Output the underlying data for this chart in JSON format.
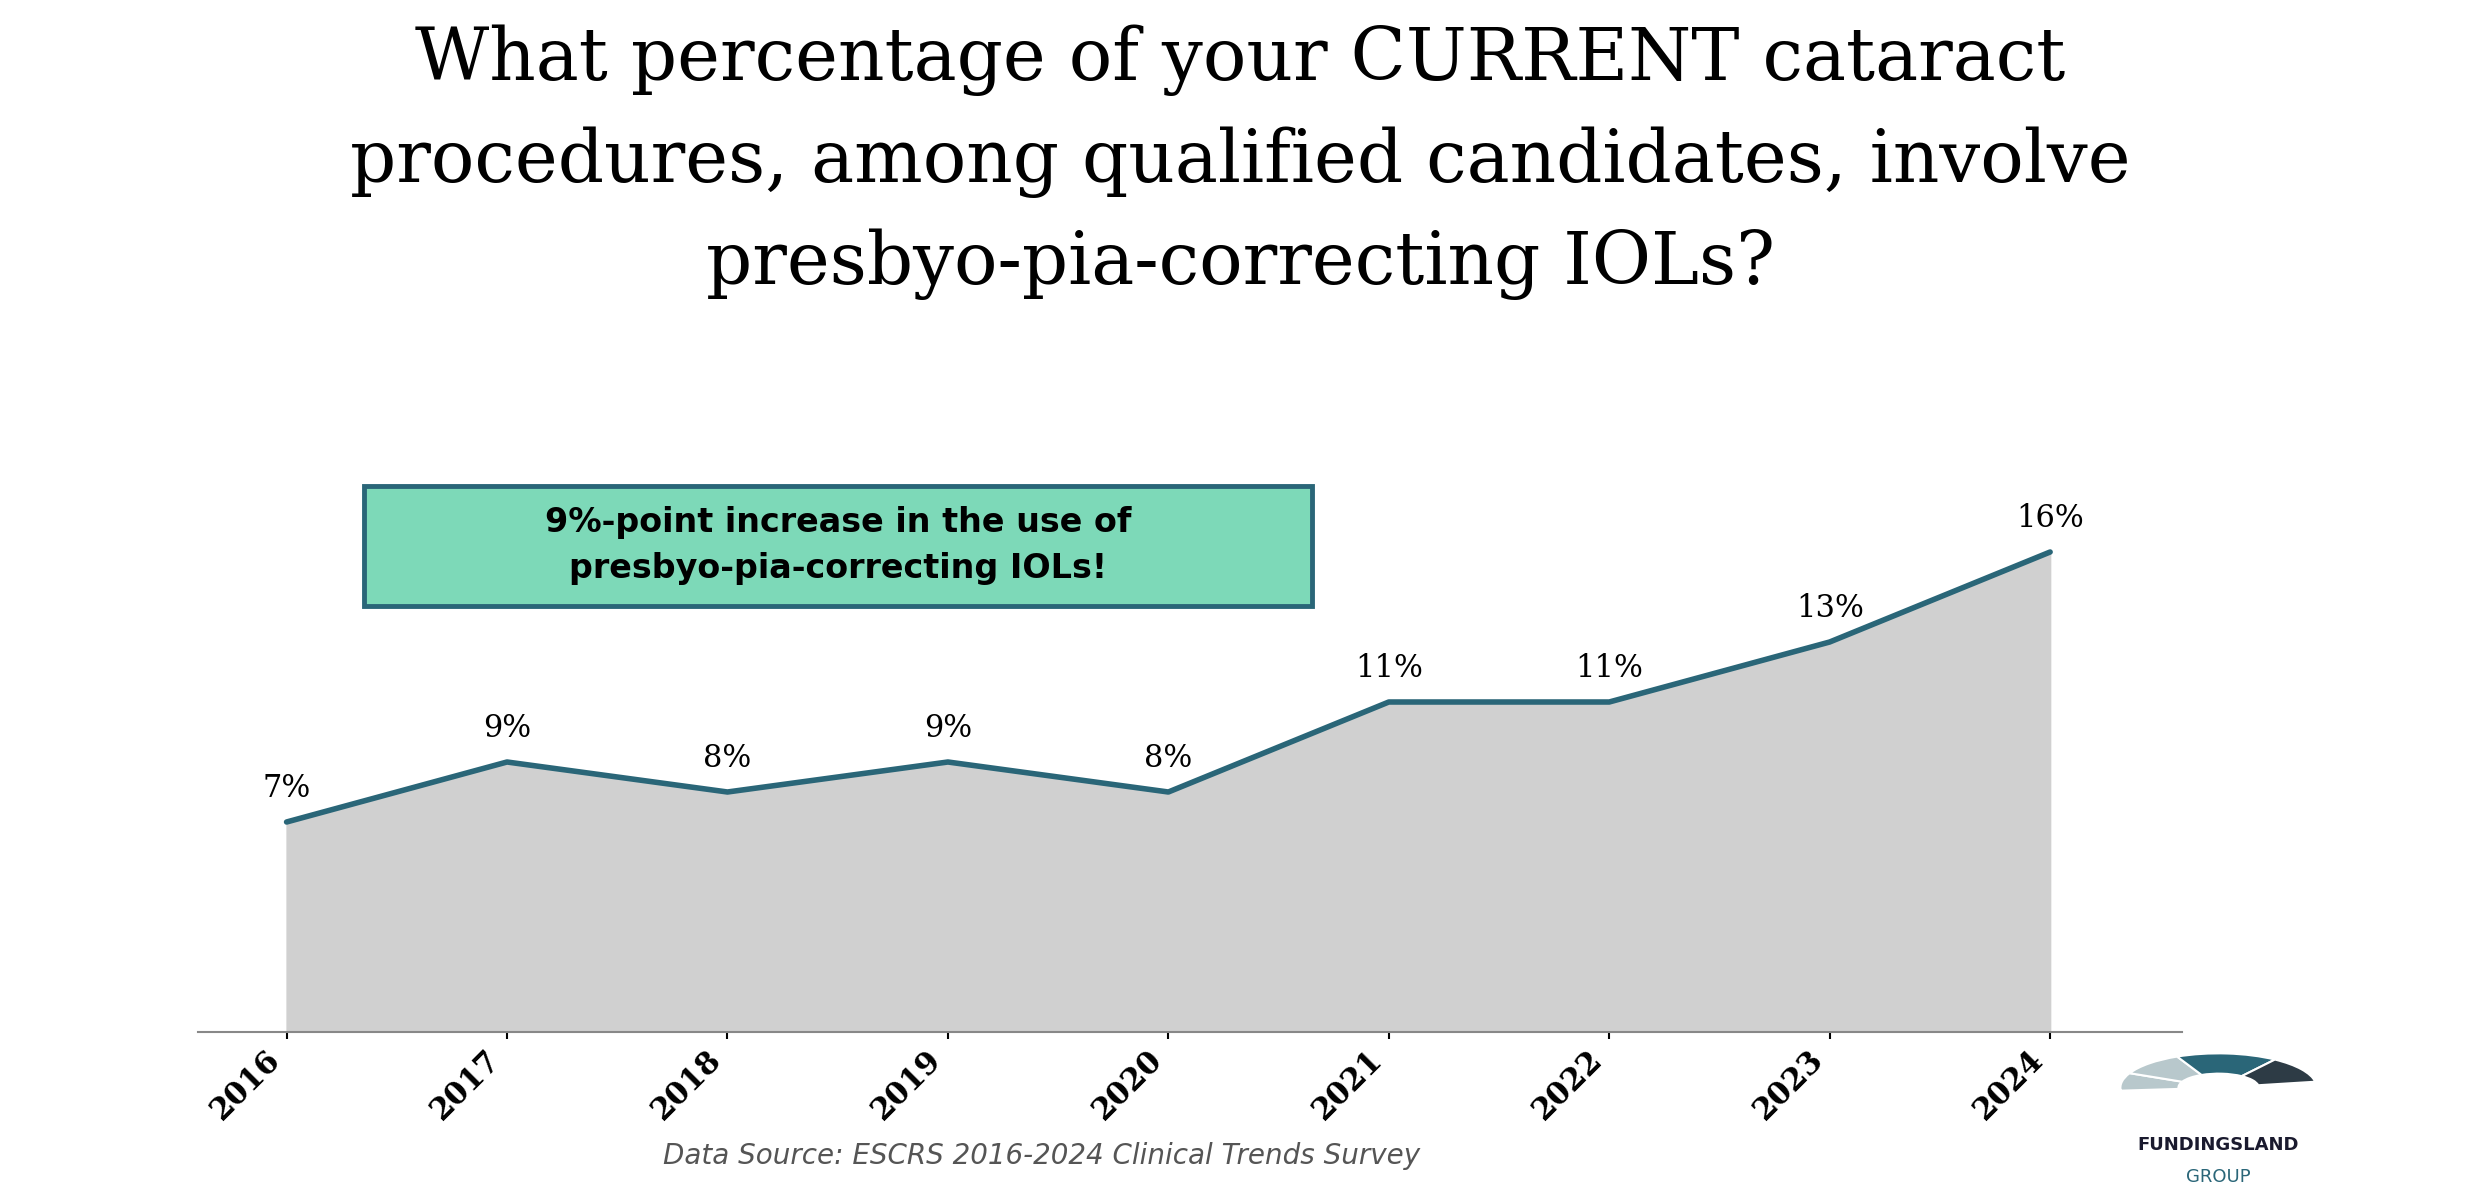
{
  "years": [
    2016,
    2017,
    2018,
    2019,
    2020,
    2021,
    2022,
    2023,
    2024
  ],
  "values": [
    7,
    9,
    8,
    9,
    8,
    11,
    11,
    13,
    16
  ],
  "labels": [
    "7%",
    "9%",
    "8%",
    "9%",
    "8%",
    "11%",
    "11%",
    "13%",
    "16%"
  ],
  "annotation_text": "9%-point increase in the use of\npresbyo­pia-correcting IOLs!",
  "annotation_bg": "#7DD9B8",
  "annotation_border": "#2A6678",
  "line_color": "#2A6678",
  "fill_color": "#D0D0D0",
  "fill_alpha": 1.0,
  "bg_title": "#DCF0F8",
  "bg_chart": "#FFFFFF",
  "data_source": "Data Source: ESCRS 2016-2024 Clinical Trends Survey",
  "label_fontsize": 22,
  "title_fontsize": 52,
  "annotation_fontsize": 24,
  "source_fontsize": 20,
  "tick_fontsize": 22
}
